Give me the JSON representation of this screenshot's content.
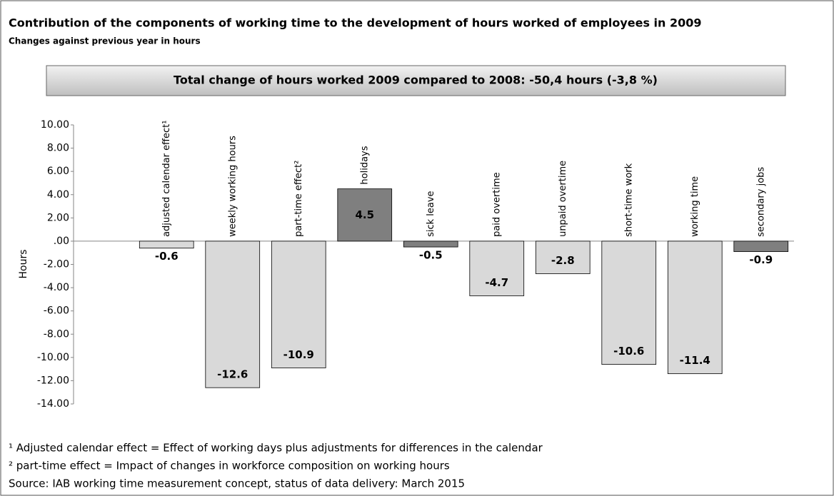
{
  "chart_data": {
    "type": "bar",
    "title": "Contribution of the components of working time to the development of hours worked of employees in 2009",
    "subtitle": "Changes against previous year in hours",
    "banner": "Total change of hours worked 2009 compared to 2008: -50,4 hours (-3,8 %)",
    "y_label": "Hours",
    "categories": [
      "adjusted calendar effect¹",
      "weekly working hours",
      "part-time effect²",
      "holidays",
      "sick leave",
      "paid overtime",
      "unpaid overtime",
      "short-time work",
      "working time",
      "secondary jobs"
    ],
    "values": [
      -0.6,
      -12.6,
      -10.9,
      4.5,
      -0.5,
      -4.7,
      -2.8,
      -10.6,
      -11.4,
      -0.9
    ],
    "colors": [
      "#d9d9d9",
      "#d9d9d9",
      "#d9d9d9",
      "#7f7f7f",
      "#7f7f7f",
      "#d9d9d9",
      "#d9d9d9",
      "#d9d9d9",
      "#d9d9d9",
      "#7f7f7f"
    ],
    "ylim": [
      -14,
      10
    ],
    "yticks": [
      {
        "value": 10,
        "label": "10.00"
      },
      {
        "value": 8,
        "label": "8.00"
      },
      {
        "value": 6,
        "label": "6.00"
      },
      {
        "value": 4,
        "label": "4.00"
      },
      {
        "value": 2,
        "label": "2.00"
      },
      {
        "value": 0,
        "label": ".00"
      },
      {
        "value": -2,
        "label": "-2.00"
      },
      {
        "value": -4,
        "label": "-4.00"
      },
      {
        "value": -6,
        "label": "-6.00"
      },
      {
        "value": -8,
        "label": "-8.00"
      },
      {
        "value": -10,
        "label": "-10.00"
      },
      {
        "value": -12,
        "label": "-12.00"
      },
      {
        "value": -14,
        "label": "-14.00"
      }
    ],
    "footnotes": [
      "¹ Adjusted calendar effect = Effect of working days plus adjustments for differences in the calendar",
      "² part-time effect = Impact of changes in workforce composition on working hours",
      "Source: IAB working time measurement concept, status of data delivery: March 2015"
    ]
  }
}
